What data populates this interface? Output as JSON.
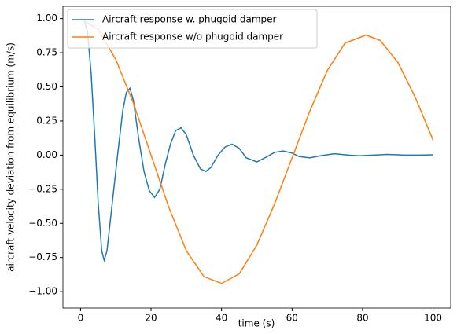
{
  "chart_data": {
    "type": "line",
    "xlabel": "time (s)",
    "ylabel": "aircraft velocity deviation from equilibrium (m/s)",
    "xlim": [
      -5,
      105
    ],
    "ylim": [
      -1.12,
      1.09
    ],
    "xticks": [
      0,
      20,
      40,
      60,
      80,
      100
    ],
    "yticks": [
      {
        "value": -1,
        "label": "−1.00"
      },
      {
        "value": -0.75,
        "label": "−0.75"
      },
      {
        "value": -0.5,
        "label": "−0.50"
      },
      {
        "value": -0.25,
        "label": "−0.25"
      },
      {
        "value": 0,
        "label": "0.00"
      },
      {
        "value": 0.25,
        "label": "0.25"
      },
      {
        "value": 0.5,
        "label": "0.50"
      },
      {
        "value": 0.75,
        "label": "0.75"
      },
      {
        "value": 1,
        "label": "1.00"
      }
    ],
    "legend": "upper left",
    "series": [
      {
        "name": "Aircraft response w. phugoid damper",
        "color": "#1f77b4",
        "x": [
          0,
          1,
          2,
          3,
          4,
          5,
          6,
          6.7,
          7.5,
          9,
          10.5,
          12,
          13,
          14,
          15,
          16.5,
          18,
          19.5,
          21,
          22.5,
          24,
          25.5,
          27,
          28.5,
          30,
          32,
          34,
          35.5,
          37,
          39,
          41,
          43,
          45,
          47,
          50,
          53,
          55,
          57.5,
          60,
          62,
          65,
          68,
          72,
          76,
          79,
          83,
          87,
          92,
          96,
          100
        ],
        "values": [
          1.0,
          0.99,
          0.9,
          0.6,
          0.15,
          -0.35,
          -0.7,
          -0.77,
          -0.7,
          -0.35,
          0.0,
          0.33,
          0.46,
          0.49,
          0.4,
          0.12,
          -0.12,
          -0.26,
          -0.31,
          -0.25,
          -0.07,
          0.08,
          0.18,
          0.2,
          0.15,
          0.0,
          -0.1,
          -0.12,
          -0.09,
          0.0,
          0.06,
          0.08,
          0.05,
          -0.02,
          -0.05,
          -0.01,
          0.02,
          0.03,
          0.015,
          -0.01,
          -0.02,
          -0.005,
          0.01,
          0.0,
          -0.005,
          0.0,
          0.005,
          0.0,
          0.0,
          0.002
        ]
      },
      {
        "name": "Aircraft response w/o phugoid damper",
        "color": "#ff7f0e",
        "x": [
          0,
          5,
          10,
          15,
          20,
          25,
          30,
          35,
          40,
          45,
          50,
          55,
          60,
          65,
          70,
          75,
          81,
          85,
          90,
          95,
          100
        ],
        "values": [
          1.0,
          0.92,
          0.7,
          0.38,
          0.0,
          -0.38,
          -0.7,
          -0.89,
          -0.94,
          -0.87,
          -0.66,
          -0.36,
          -0.02,
          0.32,
          0.62,
          0.82,
          0.88,
          0.84,
          0.68,
          0.42,
          0.11
        ]
      }
    ]
  }
}
